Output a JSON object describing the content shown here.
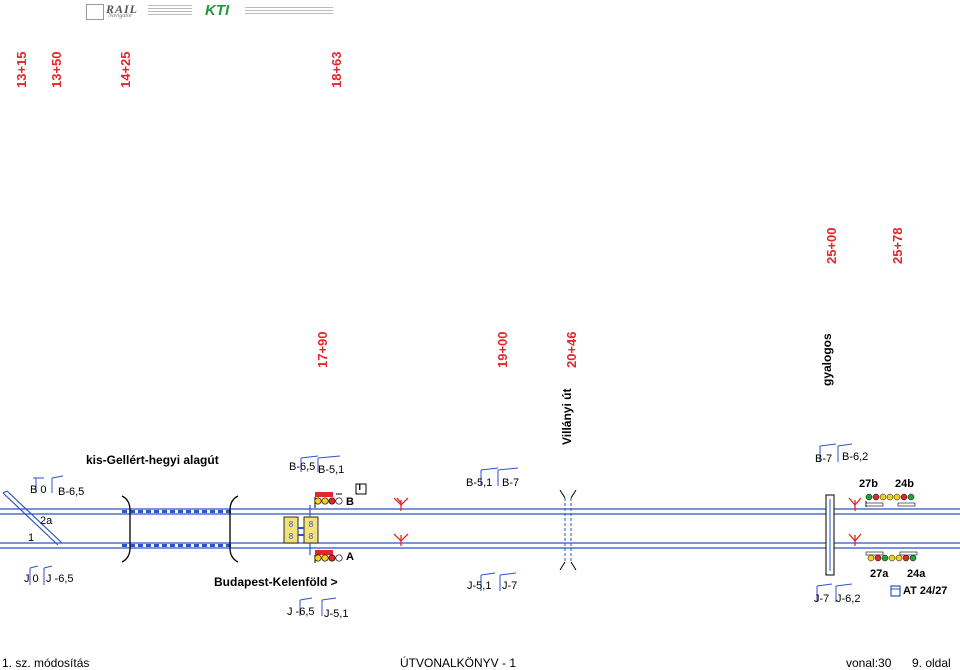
{
  "header": {
    "rail_logo_text": "RAIL",
    "rail_logo_sub": "Navigator",
    "kti_logo_text": "KTI"
  },
  "kilometer_marks_top": [
    "13+15",
    "13+50",
    "14+25",
    "18+63"
  ],
  "kilometer_marks_mid": [
    "17+90",
    "19+00",
    "20+46",
    "25+00",
    "25+78"
  ],
  "places": {
    "villanyi": "Villányi út",
    "gyalogos": "gyalogos",
    "tunnel": "kis-Gellért-hegyi alagút",
    "station": "Budapest-Kelenföld >"
  },
  "speed_boards": {
    "b0": "B 0",
    "b65_left": "B-6,5",
    "j0": "J 0",
    "j65_left": "J -6,5",
    "b65_mid": "B-6,5",
    "b51_mid": "B-5,1",
    "j65_mid": "J -6,5",
    "j51_mid": "J-5,1",
    "b51_right": "B-5,1",
    "b7_right": "B-7",
    "j51_right": "J-5,1",
    "j7_right": "J-7",
    "b7_far": "B-7",
    "b62_far": "B-6,2",
    "j7_far": "J-7",
    "j62_far": "J-6,2"
  },
  "signals": {
    "sig_b": "B",
    "sig_a": "A",
    "sig_27b": "27b",
    "sig_24b": "24b",
    "sig_27a": "27a",
    "sig_24a": "24a",
    "at": "AT 24/27",
    "t_box": "T"
  },
  "tracks": {
    "track_2a": "2a",
    "track_1": "1"
  },
  "footer": {
    "modification": "1. sz. módosítás",
    "book": "ÚTVONALKÖNYV  -  1",
    "line": "vonal:30",
    "page": "9. oldal"
  },
  "colors": {
    "track_blue": "#2b55c8",
    "km_red": "#e3262b",
    "signal_red": "#e3262b",
    "signal_yellow": "#f3d21b",
    "signal_green": "#1fa33a"
  }
}
